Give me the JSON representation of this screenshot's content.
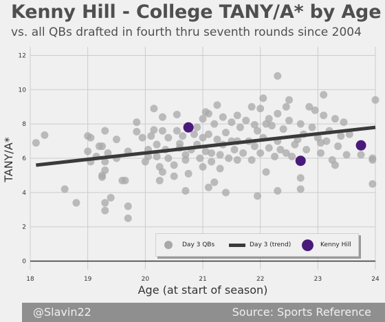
{
  "title": "Kenny Hill - College TANY/A* by Age",
  "subtitle": "vs. all QBs drafted in fourth thru seventh rounds since 2004",
  "footer": {
    "left": "@Slavin22",
    "right": "Source: Sports Reference"
  },
  "colors": {
    "background": "#f0f0f0",
    "scatter": "#a8a8a8",
    "trend": "#3a3a3a",
    "highlight": "#4a1a7a",
    "footer": "#8f8f8f"
  },
  "chart_data": {
    "type": "scatter",
    "xlabel": "Age (at start of season)",
    "ylabel": "TANY/A*",
    "xlim": [
      18,
      24
    ],
    "ylim": [
      -0.5,
      12.5
    ],
    "xticks": [
      "18",
      "19",
      "20",
      "21",
      "22",
      "23",
      "24"
    ],
    "yticks": [
      "0",
      "2",
      "4",
      "6",
      "8",
      "10",
      "12"
    ],
    "grid": true,
    "legend": {
      "placement": "bottom-right",
      "entries": [
        "Day 3 QBs",
        "Day 3 (trend)",
        "Kenny Hill"
      ]
    },
    "series": [
      {
        "name": "Day 3 QBs",
        "points": [
          [
            18.1,
            6.9
          ],
          [
            18.25,
            7.35
          ],
          [
            18.6,
            4.2
          ],
          [
            18.8,
            3.4
          ],
          [
            19.0,
            7.3
          ],
          [
            19.0,
            6.4
          ],
          [
            19.05,
            7.2
          ],
          [
            19.05,
            5.8
          ],
          [
            19.15,
            6.1
          ],
          [
            19.2,
            6.7
          ],
          [
            19.25,
            5.0
          ],
          [
            19.25,
            4.9
          ],
          [
            19.3,
            5.3
          ],
          [
            19.3,
            5.8
          ],
          [
            19.35,
            6.3
          ],
          [
            19.25,
            6.7
          ],
          [
            19.3,
            7.6
          ],
          [
            19.3,
            2.95
          ],
          [
            19.3,
            3.4
          ],
          [
            19.4,
            3.7
          ],
          [
            19.5,
            6.0
          ],
          [
            19.5,
            7.1
          ],
          [
            19.6,
            4.7
          ],
          [
            19.65,
            4.7
          ],
          [
            19.7,
            3.2
          ],
          [
            19.7,
            2.5
          ],
          [
            19.7,
            6.4
          ],
          [
            19.85,
            7.55
          ],
          [
            19.85,
            8.1
          ],
          [
            19.95,
            7.2
          ],
          [
            20.0,
            5.8
          ],
          [
            20.05,
            6.1
          ],
          [
            20.05,
            6.5
          ],
          [
            20.1,
            7.3
          ],
          [
            20.15,
            7.65
          ],
          [
            20.15,
            8.9
          ],
          [
            20.2,
            6.8
          ],
          [
            20.2,
            6.1
          ],
          [
            20.25,
            5.5
          ],
          [
            20.25,
            4.7
          ],
          [
            20.3,
            5.2
          ],
          [
            20.3,
            7.6
          ],
          [
            20.3,
            8.4
          ],
          [
            20.35,
            6.5
          ],
          [
            20.4,
            7.2
          ],
          [
            20.4,
            6.0
          ],
          [
            20.5,
            5.6
          ],
          [
            20.5,
            4.95
          ],
          [
            20.55,
            7.6
          ],
          [
            20.55,
            8.55
          ],
          [
            20.6,
            6.6
          ],
          [
            20.6,
            6.85
          ],
          [
            20.65,
            7.3
          ],
          [
            20.7,
            6.2
          ],
          [
            20.7,
            5.9
          ],
          [
            20.75,
            5.1
          ],
          [
            20.8,
            6.5
          ],
          [
            20.85,
            7.4
          ],
          [
            20.9,
            6.8
          ],
          [
            20.9,
            7.8
          ],
          [
            20.95,
            6.0
          ],
          [
            21.0,
            7.2
          ],
          [
            21.0,
            8.3
          ],
          [
            21.0,
            5.5
          ],
          [
            21.05,
            8.7
          ],
          [
            21.05,
            6.4
          ],
          [
            21.1,
            8.6
          ],
          [
            21.1,
            7.4
          ],
          [
            21.15,
            6.3
          ],
          [
            21.15,
            5.8
          ],
          [
            21.2,
            8.0
          ],
          [
            21.2,
            4.6
          ],
          [
            21.25,
            7.1
          ],
          [
            21.25,
            9.1
          ],
          [
            21.3,
            6.2
          ],
          [
            21.3,
            5.4
          ],
          [
            21.35,
            8.4
          ],
          [
            21.35,
            6.8
          ],
          [
            21.4,
            7.5
          ],
          [
            21.45,
            6.0
          ],
          [
            21.5,
            8.1
          ],
          [
            21.5,
            7.0
          ],
          [
            21.55,
            6.5
          ],
          [
            21.6,
            8.5
          ],
          [
            21.6,
            5.9
          ],
          [
            21.65,
            7.8
          ],
          [
            21.7,
            6.3
          ],
          [
            21.75,
            8.2
          ],
          [
            21.8,
            7.0
          ],
          [
            21.85,
            5.9
          ],
          [
            21.9,
            6.7
          ],
          [
            21.95,
            7.6
          ],
          [
            22.0,
            8.9
          ],
          [
            22.0,
            6.3
          ],
          [
            22.05,
            9.5
          ],
          [
            22.05,
            7.2
          ],
          [
            22.1,
            5.2
          ],
          [
            22.1,
            8.0
          ],
          [
            22.15,
            6.6
          ],
          [
            22.2,
            7.9
          ],
          [
            22.25,
            6.1
          ],
          [
            22.3,
            8.6
          ],
          [
            22.3,
            7.0
          ],
          [
            22.35,
            6.5
          ],
          [
            22.4,
            7.7
          ],
          [
            22.45,
            6.3
          ],
          [
            22.5,
            9.4
          ],
          [
            22.5,
            8.2
          ],
          [
            22.55,
            6.1
          ],
          [
            22.6,
            6.8
          ],
          [
            22.65,
            7.1
          ],
          [
            22.7,
            8.0
          ],
          [
            22.75,
            7.4
          ],
          [
            22.8,
            6.5
          ],
          [
            22.85,
            9.0
          ],
          [
            22.9,
            7.8
          ],
          [
            22.95,
            8.8
          ],
          [
            23.0,
            7.2
          ],
          [
            23.05,
            6.3
          ],
          [
            23.05,
            6.9
          ],
          [
            23.1,
            8.5
          ],
          [
            23.1,
            9.7
          ],
          [
            23.15,
            7.0
          ],
          [
            23.2,
            7.6
          ],
          [
            23.25,
            5.9
          ],
          [
            23.3,
            8.3
          ],
          [
            23.3,
            5.6
          ],
          [
            23.35,
            6.7
          ],
          [
            23.4,
            7.3
          ],
          [
            23.45,
            8.1
          ],
          [
            23.5,
            6.2
          ],
          [
            23.55,
            7.4
          ],
          [
            23.75,
            6.2
          ],
          [
            23.95,
            6.0
          ],
          [
            23.95,
            5.9
          ],
          [
            23.95,
            4.5
          ],
          [
            24.0,
            9.4
          ],
          [
            22.3,
            10.8
          ],
          [
            22.3,
            4.1
          ],
          [
            22.7,
            4.85
          ],
          [
            22.7,
            4.2
          ],
          [
            21.4,
            4.0
          ],
          [
            21.1,
            4.3
          ],
          [
            20.7,
            4.1
          ],
          [
            21.95,
            3.8
          ],
          [
            22.45,
            9.0
          ],
          [
            21.85,
            9.0
          ],
          [
            21.6,
            7.0
          ],
          [
            21.9,
            7.95
          ],
          [
            22.15,
            8.3
          ]
        ]
      },
      {
        "name": "Day 3 (trend)",
        "points": [
          [
            18.1,
            5.6
          ],
          [
            24.0,
            7.8
          ]
        ]
      },
      {
        "name": "Kenny Hill",
        "points": [
          [
            20.75,
            7.8
          ],
          [
            22.7,
            5.85
          ],
          [
            23.75,
            6.75
          ]
        ]
      }
    ]
  }
}
